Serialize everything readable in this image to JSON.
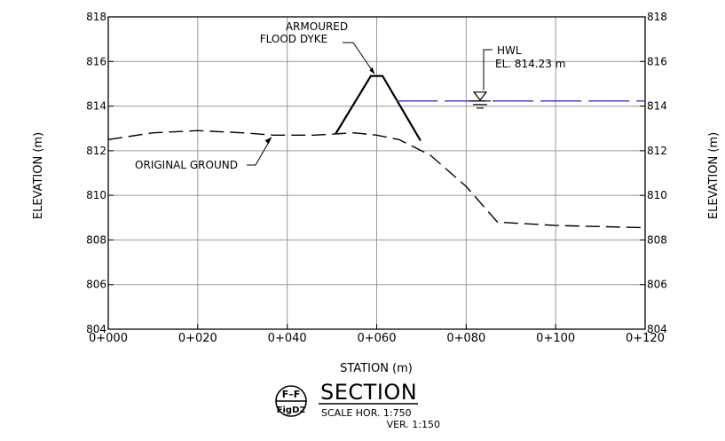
{
  "chart_data": {
    "type": "line",
    "xlabel": "STATION (m)",
    "ylabel": "ELEVATION (m)",
    "xlim": [
      0,
      120
    ],
    "ylim": [
      804,
      818
    ],
    "x_ticks": [
      0,
      20,
      40,
      60,
      80,
      100,
      120
    ],
    "x_tick_labels": [
      "0+000",
      "0+020",
      "0+040",
      "0+060",
      "0+080",
      "0+100",
      "0+120"
    ],
    "y_ticks": [
      804,
      806,
      808,
      810,
      812,
      814,
      816,
      818
    ],
    "y_tick_labels": [
      "804",
      "806",
      "808",
      "810",
      "812",
      "814",
      "816",
      "818"
    ],
    "grid": true,
    "series": [
      {
        "name": "ORIGINAL GROUND",
        "style": "dashed",
        "color": "#000000",
        "points": [
          [
            0,
            812.5
          ],
          [
            10,
            812.8
          ],
          [
            20,
            812.9
          ],
          [
            30,
            812.8
          ],
          [
            37,
            812.7
          ],
          [
            46,
            812.7
          ],
          [
            55,
            812.8
          ],
          [
            60,
            812.7
          ],
          [
            65,
            812.5
          ],
          [
            72,
            811.8
          ],
          [
            80,
            810.4
          ],
          [
            87,
            808.8
          ],
          [
            100,
            808.65
          ],
          [
            120,
            808.55
          ]
        ]
      },
      {
        "name": "ARMOURED FLOOD DYKE",
        "style": "solid",
        "color": "#000000",
        "points": [
          [
            50.8,
            812.75
          ],
          [
            58.7,
            815.35
          ],
          [
            61.3,
            815.35
          ],
          [
            69.8,
            812.45
          ]
        ]
      },
      {
        "name": "HWL",
        "style": "dash-long",
        "color": "#3333cc",
        "points": [
          [
            64.5,
            814.23
          ],
          [
            120,
            814.23
          ]
        ]
      }
    ],
    "annotations": [
      {
        "lines": [
          "ARMOURED",
          "FLOOD DYKE"
        ],
        "target": [
          60,
          815.35
        ]
      },
      {
        "lines": [
          "HWL",
          "EL. 814.23 m"
        ],
        "target": [
          62,
          814.23
        ]
      },
      {
        "lines": [
          "ORIGINAL GROUND"
        ],
        "target": [
          37,
          812.7
        ]
      }
    ]
  },
  "section": {
    "callout_top": "F–F",
    "callout_bottom": "FigD2",
    "title": "SECTION",
    "scale_hor": "SCALE HOR. 1:750",
    "scale_ver": "VER. 1:150"
  },
  "colors": {
    "hwl": "#3333cc",
    "grid": "#9a9a9a",
    "ink": "#000000"
  }
}
